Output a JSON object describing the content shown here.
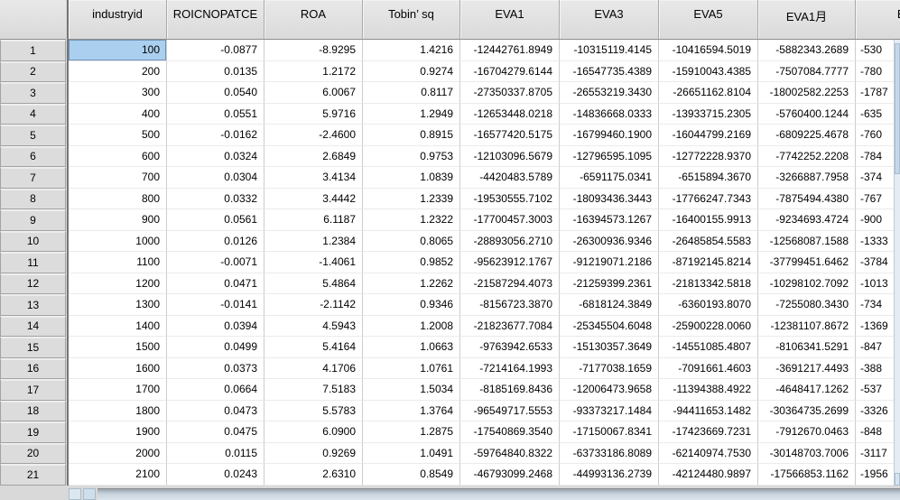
{
  "table": {
    "corner_label": "",
    "columns": [
      "industryid",
      "ROICNOPATCE",
      "ROA",
      "Tobin’ sq",
      "EVA1",
      "EVA3",
      "EVA5",
      "EVA1月",
      "EV"
    ],
    "rows": [
      {
        "n": "1",
        "cells": [
          "100",
          "-0.0877",
          "-8.9295",
          "1.4216",
          "-12442761.8949",
          "-10315119.4145",
          "-10416594.5019",
          "-5882343.2689",
          "-530"
        ]
      },
      {
        "n": "2",
        "cells": [
          "200",
          "0.0135",
          "1.2172",
          "0.9274",
          "-16704279.6144",
          "-16547735.4389",
          "-15910043.4385",
          "-7507084.7777",
          "-780"
        ]
      },
      {
        "n": "3",
        "cells": [
          "300",
          "0.0540",
          "6.0067",
          "0.8117",
          "-27350337.8705",
          "-26553219.3430",
          "-26651162.8104",
          "-18002582.2253",
          "-1787"
        ]
      },
      {
        "n": "4",
        "cells": [
          "400",
          "0.0551",
          "5.9716",
          "1.2949",
          "-12653448.0218",
          "-14836668.0333",
          "-13933715.2305",
          "-5760400.1244",
          "-635"
        ]
      },
      {
        "n": "5",
        "cells": [
          "500",
          "-0.0162",
          "-2.4600",
          "0.8915",
          "-16577420.5175",
          "-16799460.1900",
          "-16044799.2169",
          "-6809225.4678",
          "-760"
        ]
      },
      {
        "n": "6",
        "cells": [
          "600",
          "0.0324",
          "2.6849",
          "0.9753",
          "-12103096.5679",
          "-12796595.1095",
          "-12772228.9370",
          "-7742252.2208",
          "-784"
        ]
      },
      {
        "n": "7",
        "cells": [
          "700",
          "0.0304",
          "3.4134",
          "1.0839",
          "-4420483.5789",
          "-6591175.0341",
          "-6515894.3670",
          "-3266887.7958",
          "-374"
        ]
      },
      {
        "n": "8",
        "cells": [
          "800",
          "0.0332",
          "3.4442",
          "1.2339",
          "-19530555.7102",
          "-18093436.3443",
          "-17766247.7343",
          "-7875494.4380",
          "-767"
        ]
      },
      {
        "n": "9",
        "cells": [
          "900",
          "0.0561",
          "6.1187",
          "1.2322",
          "-17700457.3003",
          "-16394573.1267",
          "-16400155.9913",
          "-9234693.4724",
          "-900"
        ]
      },
      {
        "n": "10",
        "cells": [
          "1000",
          "0.0126",
          "1.2384",
          "0.8065",
          "-28893056.2710",
          "-26300936.9346",
          "-26485854.5583",
          "-12568087.1588",
          "-1333"
        ]
      },
      {
        "n": "11",
        "cells": [
          "1100",
          "-0.0071",
          "-1.4061",
          "0.9852",
          "-95623912.1767",
          "-91219071.2186",
          "-87192145.8214",
          "-37799451.6462",
          "-3784"
        ]
      },
      {
        "n": "12",
        "cells": [
          "1200",
          "0.0471",
          "5.4864",
          "1.2262",
          "-21587294.4073",
          "-21259399.2361",
          "-21813342.5818",
          "-10298102.7092",
          "-1013"
        ]
      },
      {
        "n": "13",
        "cells": [
          "1300",
          "-0.0141",
          "-2.1142",
          "0.9346",
          "-8156723.3870",
          "-6818124.3849",
          "-6360193.8070",
          "-7255080.3430",
          "-734"
        ]
      },
      {
        "n": "14",
        "cells": [
          "1400",
          "0.0394",
          "4.5943",
          "1.2008",
          "-21823677.7084",
          "-25345504.6048",
          "-25900228.0060",
          "-12381107.8672",
          "-1369"
        ]
      },
      {
        "n": "15",
        "cells": [
          "1500",
          "0.0499",
          "5.4164",
          "1.0663",
          "-9763942.6533",
          "-15130357.3649",
          "-14551085.4807",
          "-8106341.5291",
          "-847"
        ]
      },
      {
        "n": "16",
        "cells": [
          "1600",
          "0.0373",
          "4.1706",
          "1.0761",
          "-7214164.1993",
          "-7177038.1659",
          "-7091661.4603",
          "-3691217.4493",
          "-388"
        ]
      },
      {
        "n": "17",
        "cells": [
          "1700",
          "0.0664",
          "7.5183",
          "1.5034",
          "-8185169.8436",
          "-12006473.9658",
          "-11394388.4922",
          "-4648417.1262",
          "-537"
        ]
      },
      {
        "n": "18",
        "cells": [
          "1800",
          "0.0473",
          "5.5783",
          "1.3764",
          "-96549717.5553",
          "-93373217.1484",
          "-94411653.1482",
          "-30364735.2699",
          "-3326"
        ]
      },
      {
        "n": "19",
        "cells": [
          "1900",
          "0.0475",
          "6.0900",
          "1.2875",
          "-17540869.3540",
          "-17150067.8341",
          "-17423669.7231",
          "-7912670.0463",
          "-848"
        ]
      },
      {
        "n": "20",
        "cells": [
          "2000",
          "0.0115",
          "0.9269",
          "1.0491",
          "-59764840.8322",
          "-63733186.8089",
          "-62140974.7530",
          "-30148703.7006",
          "-3117"
        ]
      },
      {
        "n": "21",
        "cells": [
          "2100",
          "0.0243",
          "2.6310",
          "0.8549",
          "-46793099.2468",
          "-44993136.2739",
          "-42124480.9897",
          "-17566853.1162",
          "-1956"
        ]
      }
    ],
    "selection": {
      "row_index": 0,
      "col_index": 0
    }
  },
  "colors": {
    "selection_bg": "#abcfee",
    "header_bg": "#dfdfdf",
    "grid_line": "#cdcdcd",
    "scrollbar_thumb": "#c5d7e9"
  }
}
